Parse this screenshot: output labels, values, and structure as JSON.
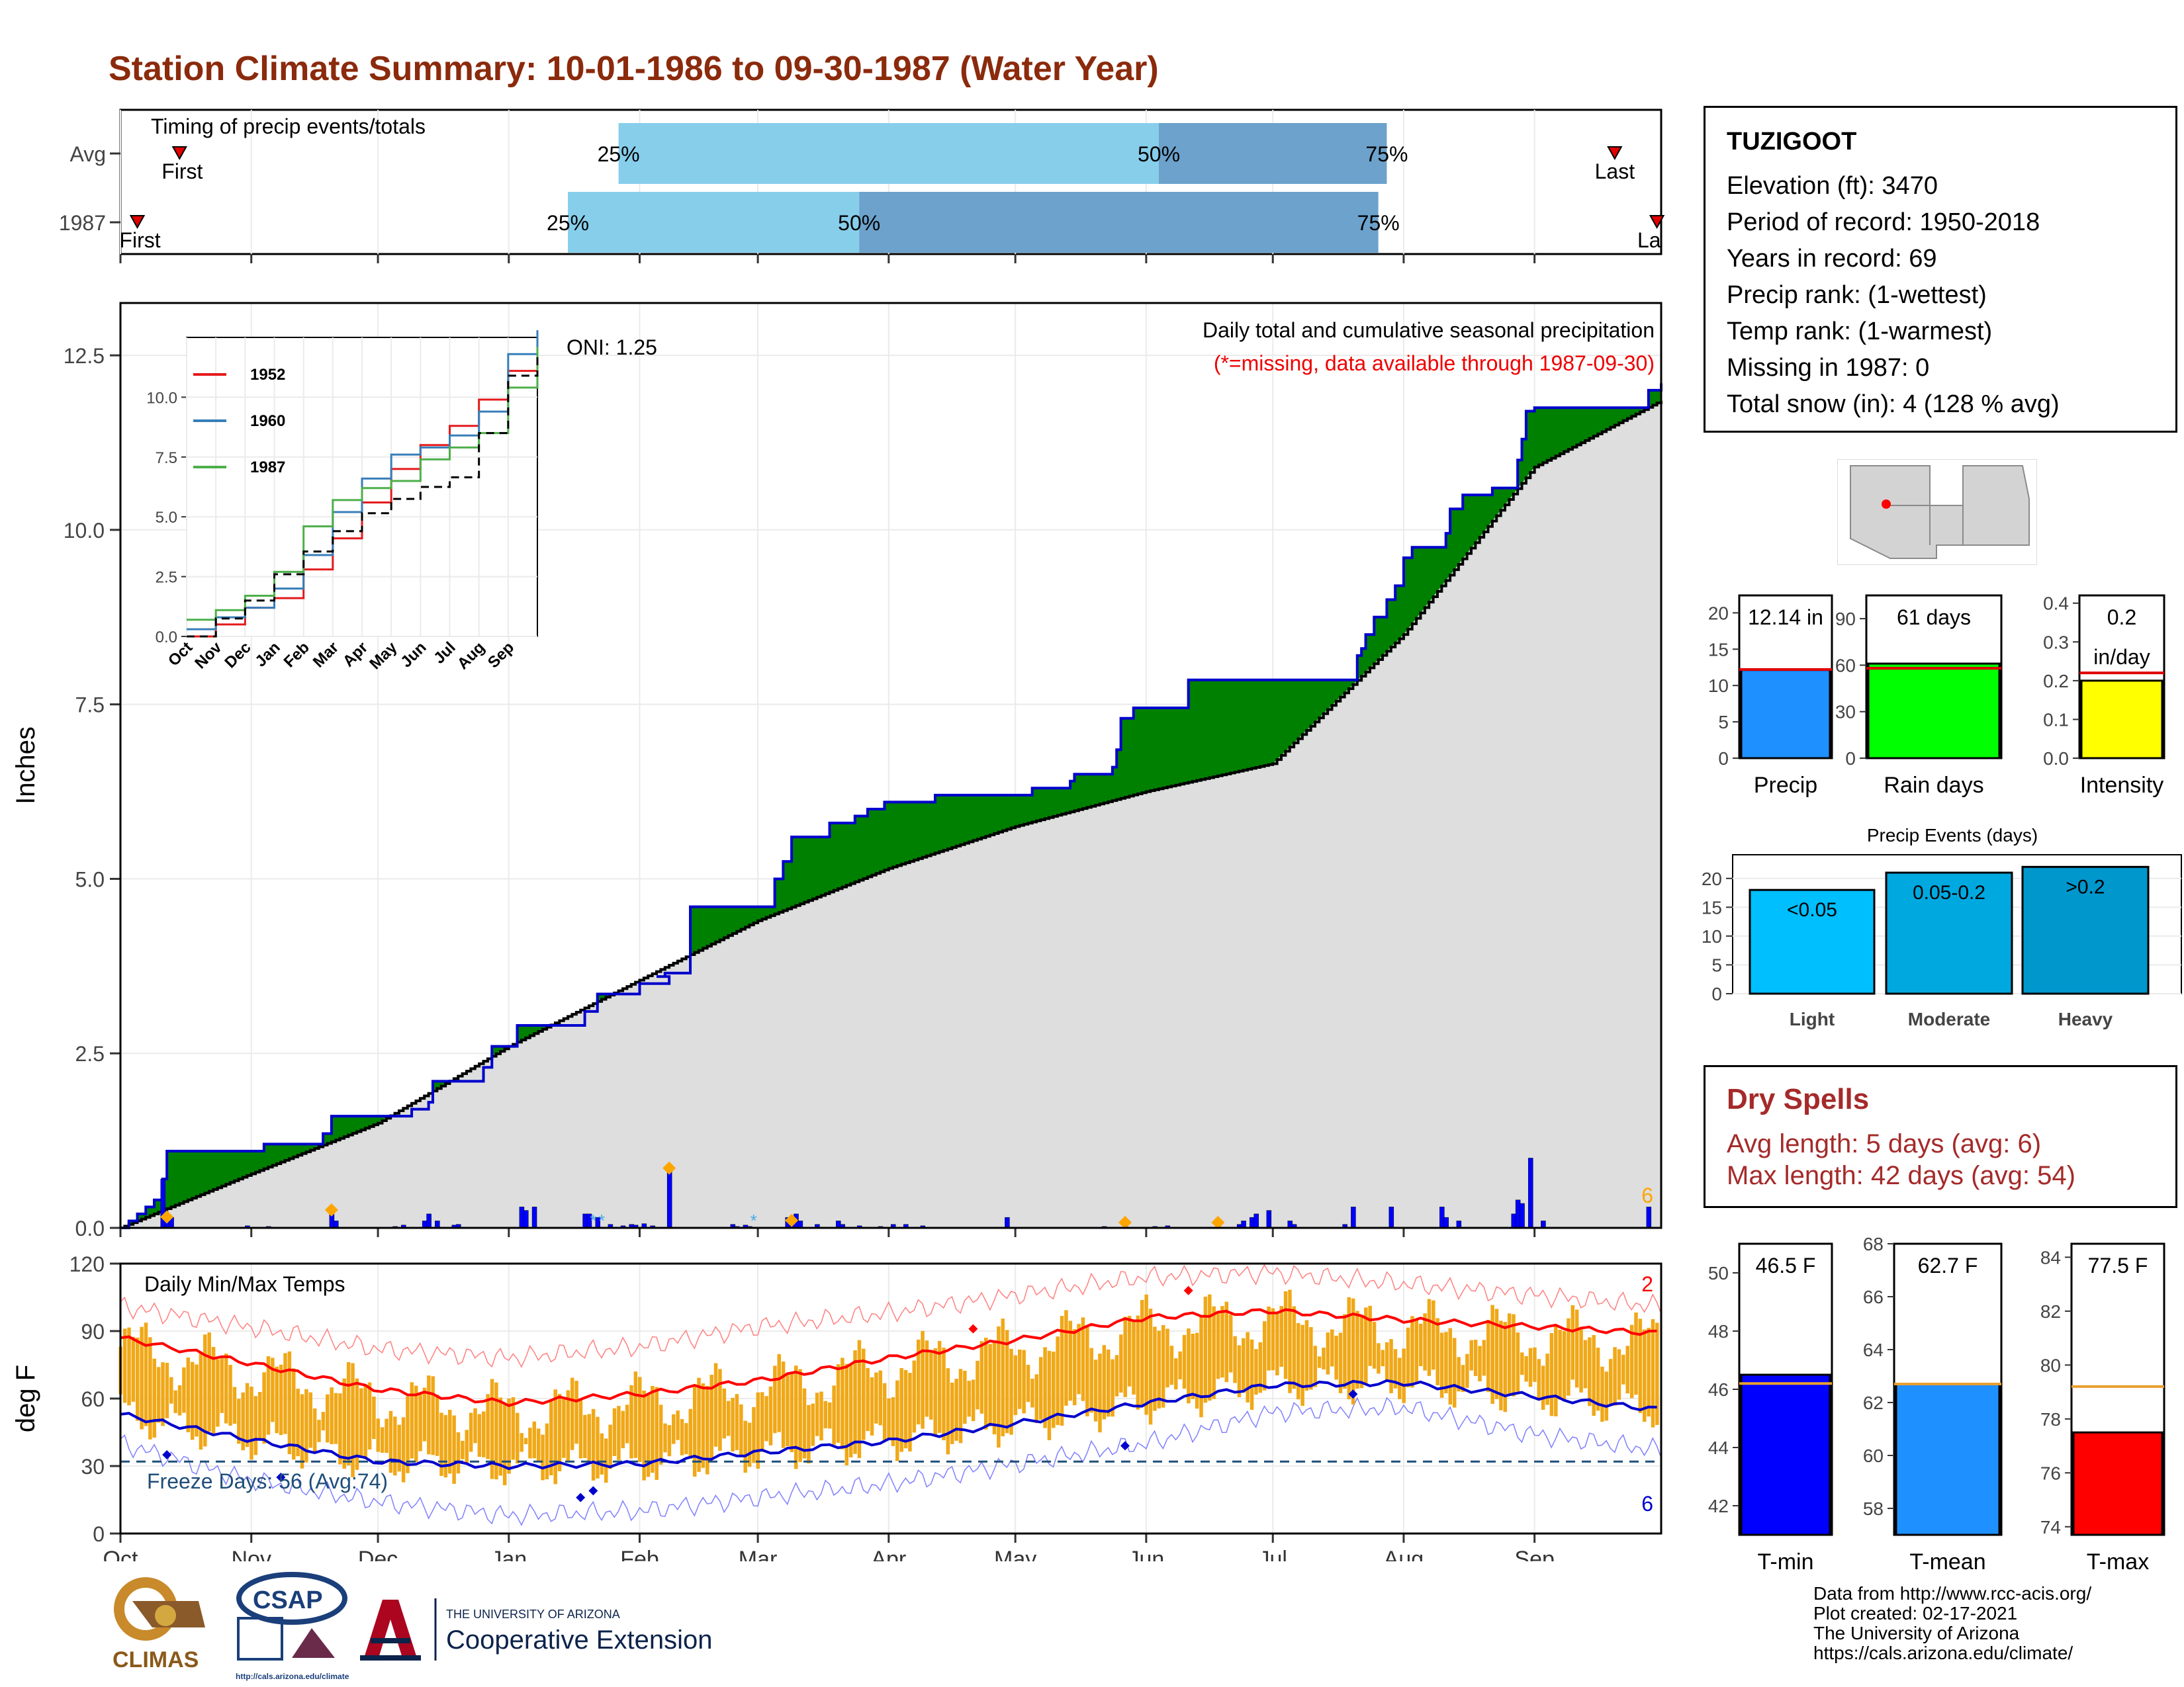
{
  "title": "Station Climate Summary: 10-01-1986 to 09-30-1987 (Water Year)",
  "station": {
    "name": "TUZIGOOT",
    "rows": [
      "Elevation (ft): 3470",
      "Period of record: 1950-2018",
      "Years in record: 69",
      "Precip rank:  (1-wettest)",
      "Temp rank:  (1-warmest)",
      "Missing in 1987: 0",
      "Total snow (in): 4 (128 % avg)"
    ]
  },
  "dry_spells": {
    "title": "Dry Spells",
    "avg": "Avg length: 5 days (avg: 6)",
    "max": "Max length: 42 days (avg: 54)"
  },
  "credits": [
    "Data from http://www.rcc-acis.org/",
    "Plot created: 02-17-2021",
    "The University of Arizona",
    "https://cals.arizona.edu/climate/"
  ],
  "logos": {
    "climas": "CLIMAS",
    "csap": "CSAP",
    "csap_url": "http://cals.arizona.edu/climate",
    "ua_small": "THE UNIVERSITY OF ARIZONA",
    "coop": "Cooperative Extension"
  },
  "colors": {
    "title": "#8b2a0c",
    "cum_green": "#008000",
    "cum_line": "#0000cd",
    "avg_area": "#dedede",
    "bar_blue": "#0000ff",
    "marker_orange": "#ffa500",
    "temp_bar": "#f0a818",
    "tmax_line": "#ff0000",
    "tmin_line": "#0000cd",
    "light_blue": "#87ceeb",
    "steel_blue": "#6ca2cc"
  },
  "chart_data": [
    {
      "type": "bar",
      "name": "timing",
      "title": "Timing of precip events/totals",
      "categories": [
        "Avg",
        "1987"
      ],
      "series": [
        {
          "name": "Avg",
          "first": "Oct 15",
          "p25": "Jan 27",
          "p50": "Jun 4",
          "p75": "Jul 28",
          "last": "Sep 20"
        },
        {
          "name": "1987",
          "first": "Oct 5",
          "p25": "Jan 15",
          "p50": "Mar 25",
          "p75": "Jul 26",
          "last": "Sep 30"
        }
      ],
      "labels": {
        "first": "First",
        "last": "Last",
        "last_clipped": "La",
        "p25": "25%",
        "p50": "50%",
        "p75": "75%"
      }
    },
    {
      "type": "line",
      "name": "cumulative_precip",
      "title": "Daily total and cumulative seasonal precipitation",
      "subtitle": "(*=missing, data available through 1987-09-30)",
      "annotation": "ONI: 1.25",
      "corner_count": "6",
      "ylabel": "Inches",
      "ylim": [
        0,
        13.25
      ],
      "yticks": [
        0.0,
        2.5,
        5.0,
        7.5,
        10.0,
        12.5
      ],
      "ytick_labels": [
        "0.0",
        "2.5",
        "5.0",
        "7.5",
        "10.0",
        "12.5"
      ],
      "xticks": [
        "Oct",
        "Nov",
        "Dec",
        "Jan",
        "Feb",
        "Mar",
        "Apr",
        "May",
        "Jun",
        "Jul",
        "Aug",
        "Sep"
      ],
      "cumulative_1987_steps": [
        [
          0,
          0.0
        ],
        [
          2,
          0.1
        ],
        [
          4,
          0.2
        ],
        [
          6,
          0.3
        ],
        [
          8,
          0.4
        ],
        [
          10,
          0.7
        ],
        [
          11,
          1.1
        ],
        [
          34,
          1.2
        ],
        [
          48,
          1.35
        ],
        [
          50,
          1.6
        ],
        [
          69,
          1.7
        ],
        [
          73,
          1.8
        ],
        [
          74,
          2.1
        ],
        [
          86,
          2.3
        ],
        [
          88,
          2.6
        ],
        [
          94,
          2.9
        ],
        [
          110,
          3.1
        ],
        [
          113,
          3.35
        ],
        [
          123,
          3.5
        ],
        [
          130,
          3.6
        ],
        [
          127,
          3.6
        ],
        [
          129,
          3.65
        ],
        [
          135,
          4.6
        ],
        [
          155,
          5.0
        ],
        [
          157,
          5.25
        ],
        [
          159,
          5.6
        ],
        [
          168,
          5.8
        ],
        [
          174,
          5.9
        ],
        [
          177,
          6.0
        ],
        [
          181,
          6.1
        ],
        [
          193,
          6.2
        ],
        [
          215,
          6.2
        ],
        [
          216,
          6.3
        ],
        [
          225,
          6.4
        ],
        [
          226,
          6.5
        ],
        [
          235,
          6.6
        ],
        [
          236,
          6.85
        ],
        [
          237,
          7.3
        ],
        [
          240,
          7.45
        ],
        [
          252,
          7.45
        ],
        [
          253,
          7.85
        ],
        [
          291,
          7.85
        ],
        [
          293,
          8.2
        ],
        [
          294,
          8.3
        ],
        [
          295,
          8.5
        ],
        [
          297,
          8.75
        ],
        [
          300,
          9.0
        ],
        [
          302,
          9.2
        ],
        [
          304,
          9.6
        ],
        [
          306,
          9.75
        ],
        [
          314,
          9.95
        ],
        [
          315,
          10.3
        ],
        [
          318,
          10.5
        ],
        [
          325,
          10.6
        ],
        [
          330,
          10.6
        ],
        [
          331,
          11.0
        ],
        [
          332,
          11.3
        ],
        [
          333,
          11.7
        ],
        [
          335,
          11.75
        ],
        [
          361,
          11.75
        ],
        [
          362,
          12.0
        ],
        [
          365,
          12.1
        ]
      ],
      "average_cumulative": [
        [
          0,
          0.0
        ],
        [
          30,
          0.75
        ],
        [
          61,
          1.5
        ],
        [
          92,
          2.6
        ],
        [
          123,
          3.55
        ],
        [
          151,
          4.4
        ],
        [
          182,
          5.15
        ],
        [
          212,
          5.75
        ],
        [
          243,
          6.25
        ],
        [
          273,
          6.65
        ],
        [
          304,
          8.5
        ],
        [
          335,
          10.9
        ],
        [
          365,
          11.85
        ]
      ],
      "daily_bars": [
        [
          10,
          0.7
        ],
        [
          11,
          0.1
        ],
        [
          12,
          0.15
        ],
        [
          30,
          0.03
        ],
        [
          35,
          0.02
        ],
        [
          50,
          0.2
        ],
        [
          51,
          0.1
        ],
        [
          65,
          0.02
        ],
        [
          67,
          0.04
        ],
        [
          72,
          0.1
        ],
        [
          73,
          0.2
        ],
        [
          75,
          0.1
        ],
        [
          79,
          0.04
        ],
        [
          80,
          0.05
        ],
        [
          95,
          0.3
        ],
        [
          96,
          0.25
        ],
        [
          98,
          0.3
        ],
        [
          110,
          0.2
        ],
        [
          111,
          0.2
        ],
        [
          113,
          0.15
        ],
        [
          116,
          0.05
        ],
        [
          119,
          0.03
        ],
        [
          121,
          0.05
        ],
        [
          122,
          0.04
        ],
        [
          124,
          0.06
        ],
        [
          126,
          0.03
        ],
        [
          130,
          0.8
        ],
        [
          145,
          0.05
        ],
        [
          146,
          0.02
        ],
        [
          148,
          0.04
        ],
        [
          149,
          0.02
        ],
        [
          158,
          0.15
        ],
        [
          159,
          0.05
        ],
        [
          160,
          0.2
        ],
        [
          161,
          0.1
        ],
        [
          165,
          0.05
        ],
        [
          170,
          0.1
        ],
        [
          171,
          0.05
        ],
        [
          175,
          0.03
        ],
        [
          180,
          0.02
        ],
        [
          183,
          0.05
        ],
        [
          186,
          0.05
        ],
        [
          190,
          0.03
        ],
        [
          210,
          0.15
        ],
        [
          233,
          0.02
        ],
        [
          238,
          0.02
        ],
        [
          245,
          0.02
        ],
        [
          248,
          0.03
        ],
        [
          260,
          0.02
        ],
        [
          265,
          0.05
        ],
        [
          266,
          0.1
        ],
        [
          268,
          0.15
        ],
        [
          269,
          0.2
        ],
        [
          272,
          0.25
        ],
        [
          277,
          0.1
        ],
        [
          278,
          0.05
        ],
        [
          290,
          0.05
        ],
        [
          292,
          0.3
        ],
        [
          301,
          0.3
        ],
        [
          313,
          0.3
        ],
        [
          314,
          0.15
        ],
        [
          317,
          0.1
        ],
        [
          330,
          0.2
        ],
        [
          331,
          0.4
        ],
        [
          332,
          0.35
        ],
        [
          334,
          1.0
        ],
        [
          337,
          0.1
        ],
        [
          362,
          0.3
        ]
      ],
      "daily_markers": [
        11,
        50,
        130,
        159,
        238,
        260
      ],
      "snow_markers": [
        112,
        114,
        150
      ],
      "inset": {
        "type": "line",
        "ylim": [
          0,
          12.5
        ],
        "yticks": [
          0.0,
          2.5,
          5.0,
          7.5,
          10.0
        ],
        "ytick_labels": [
          "0.0",
          "2.5",
          "5.0",
          "7.5",
          "10.0"
        ],
        "xticks": [
          "Oct",
          "Nov",
          "Dec",
          "Jan",
          "Feb",
          "Mar",
          "Apr",
          "May",
          "Jun",
          "Jul",
          "Aug",
          "Sep"
        ],
        "series": [
          {
            "name": "1952",
            "color": "#e41a1c",
            "values": [
              0.0,
              0.5,
              1.2,
              1.6,
              2.8,
              4.1,
              5.6,
              7.0,
              8.0,
              8.8,
              9.9,
              11.1,
              12.4
            ]
          },
          {
            "name": "1960",
            "color": "#377eb8",
            "values": [
              0.3,
              0.8,
              1.2,
              2.0,
              3.4,
              5.2,
              6.6,
              7.6,
              7.9,
              8.4,
              9.4,
              11.8,
              12.8
            ]
          },
          {
            "name": "1987",
            "color": "#4daf4a",
            "values": [
              0.7,
              1.1,
              1.7,
              2.7,
              4.6,
              5.7,
              6.2,
              6.5,
              7.4,
              7.9,
              8.5,
              10.4,
              12.1
            ]
          },
          {
            "name": "average",
            "dashed": true,
            "color": "#000000",
            "values": [
              0.0,
              0.75,
              1.5,
              2.6,
              3.55,
              4.4,
              5.15,
              5.75,
              6.25,
              6.65,
              8.5,
              10.9,
              11.85
            ]
          }
        ]
      }
    },
    {
      "type": "bar",
      "name": "temperature",
      "title": "Daily Min/Max Temps",
      "ylabel": "deg F",
      "ylim": [
        0,
        120
      ],
      "yticks": [
        0,
        30,
        60,
        90,
        120
      ],
      "xticks": [
        "Oct",
        "Nov",
        "Dec",
        "Jan",
        "Feb",
        "Mar",
        "Apr",
        "May",
        "Jun",
        "Jul",
        "Aug",
        "Sep"
      ],
      "annotation": "Freeze Days: 56 (Avg:74)",
      "freeze_line": 32,
      "max_record_count": "2",
      "min_record_count": "6",
      "avg_tmax": [
        [
          0,
          87
        ],
        [
          30,
          76
        ],
        [
          61,
          64
        ],
        [
          92,
          58
        ],
        [
          123,
          62
        ],
        [
          151,
          68
        ],
        [
          182,
          78
        ],
        [
          212,
          86
        ],
        [
          243,
          96
        ],
        [
          273,
          99
        ],
        [
          304,
          95
        ],
        [
          335,
          92
        ],
        [
          365,
          89
        ]
      ],
      "avg_tmin": [
        [
          0,
          53
        ],
        [
          30,
          42
        ],
        [
          61,
          32
        ],
        [
          92,
          30
        ],
        [
          123,
          31
        ],
        [
          151,
          36
        ],
        [
          182,
          41
        ],
        [
          212,
          49
        ],
        [
          243,
          58
        ],
        [
          273,
          66
        ],
        [
          304,
          67
        ],
        [
          335,
          61
        ],
        [
          365,
          55
        ]
      ],
      "rec_tmax": [
        [
          0,
          101
        ],
        [
          30,
          92
        ],
        [
          61,
          82
        ],
        [
          92,
          78
        ],
        [
          123,
          83
        ],
        [
          151,
          92
        ],
        [
          182,
          98
        ],
        [
          212,
          106
        ],
        [
          243,
          114
        ],
        [
          273,
          116
        ],
        [
          304,
          111
        ],
        [
          335,
          106
        ],
        [
          365,
          101
        ]
      ],
      "rec_tmin": [
        [
          0,
          40
        ],
        [
          30,
          24
        ],
        [
          61,
          14
        ],
        [
          92,
          8
        ],
        [
          123,
          10
        ],
        [
          151,
          16
        ],
        [
          182,
          22
        ],
        [
          212,
          31
        ],
        [
          243,
          40
        ],
        [
          273,
          54
        ],
        [
          304,
          56
        ],
        [
          335,
          44
        ],
        [
          365,
          37
        ]
      ]
    },
    {
      "type": "bar",
      "name": "summary_precip",
      "categories": [
        "Precip",
        "Rain days",
        "Intensity"
      ],
      "values": [
        12.14,
        61,
        0.2
      ],
      "averages": [
        12.2,
        58,
        0.22
      ],
      "value_labels": [
        "12.14 in",
        "61 days",
        "0.2 in/day"
      ],
      "yticks": [
        [
          0,
          5,
          10,
          15,
          20
        ],
        [
          0,
          30,
          60,
          90
        ],
        [
          0.0,
          0.1,
          0.2,
          0.3,
          0.4
        ]
      ],
      "ytick_labels": [
        [
          "0",
          "5",
          "10",
          "15",
          "20"
        ],
        [
          "0",
          "30",
          "60",
          "90"
        ],
        [
          "0.0",
          "0.1",
          "0.2",
          "0.3",
          "0.4"
        ]
      ],
      "colors": [
        "#1e90ff",
        "#00ff00",
        "#ffff00"
      ]
    },
    {
      "type": "bar",
      "name": "precip_events",
      "title": "Precip Events (days)",
      "categories": [
        "Light",
        "Moderate",
        "Heavy"
      ],
      "values": [
        18,
        21,
        22
      ],
      "value_labels": [
        "<0.05",
        "0.05-0.2",
        ">0.2"
      ],
      "yticks": [
        0,
        5,
        10,
        15,
        20
      ],
      "ylim": [
        0,
        22.5
      ],
      "colors": [
        "#00bfff",
        "#00a8e0",
        "#0097cc"
      ]
    },
    {
      "type": "bar",
      "name": "summary_temp",
      "categories": [
        "T-min",
        "T-mean",
        "T-max"
      ],
      "values": [
        46.5,
        62.7,
        77.5
      ],
      "averages": [
        46.2,
        62.7,
        79.2
      ],
      "value_labels": [
        "46.5 F",
        "62.7 F",
        "77.5 F"
      ],
      "ylims": [
        [
          41,
          51
        ],
        [
          57,
          68
        ],
        [
          73.7,
          84.5
        ]
      ],
      "yticks": [
        [
          42,
          44,
          46,
          48,
          50
        ],
        [
          58,
          60,
          62,
          64,
          66,
          68
        ],
        [
          74,
          76,
          78,
          80,
          82,
          84
        ]
      ],
      "colors": [
        "#0000ff",
        "#1e90ff",
        "#ff0000"
      ]
    }
  ]
}
